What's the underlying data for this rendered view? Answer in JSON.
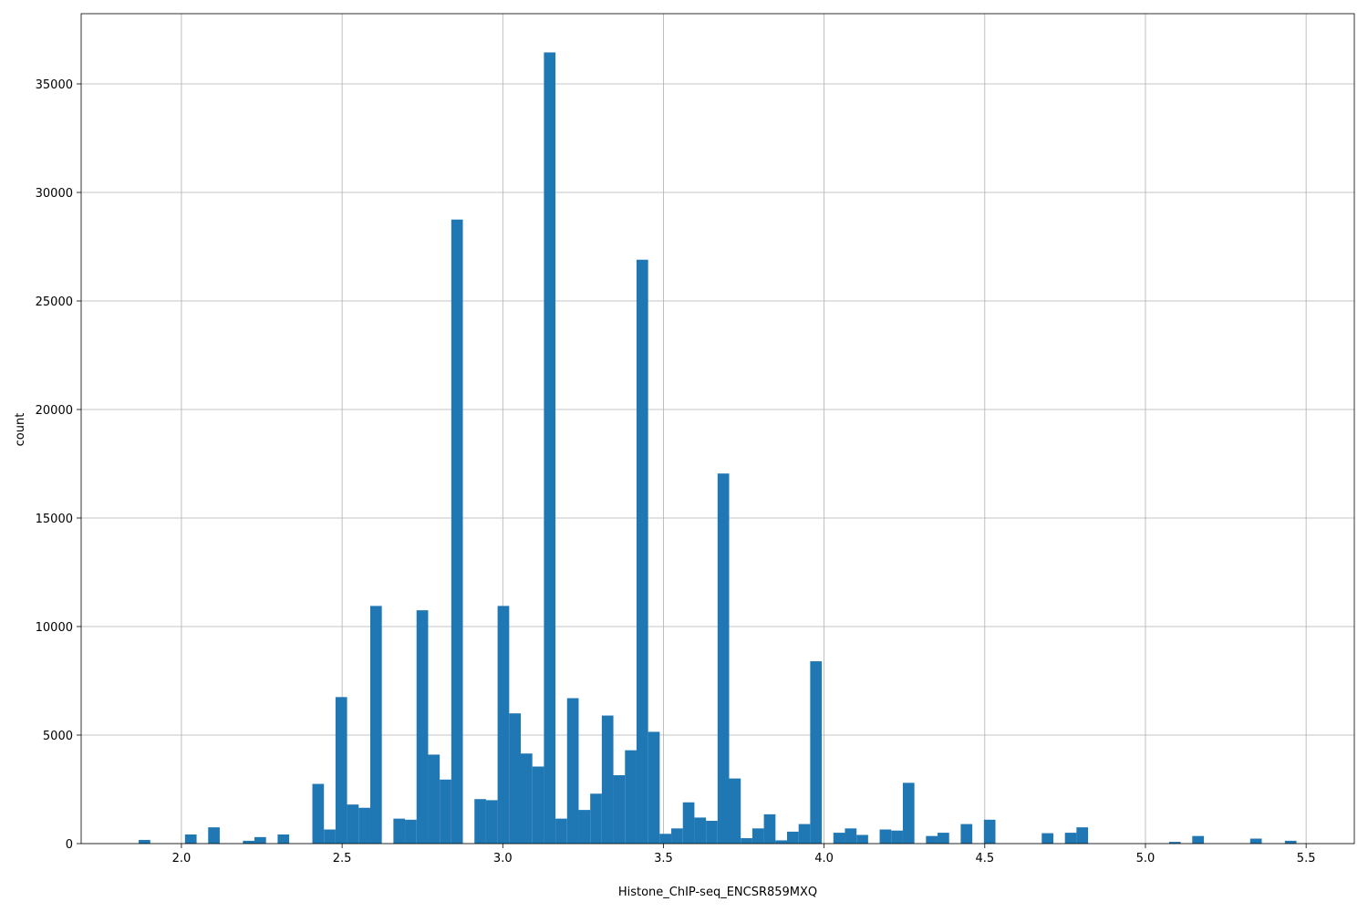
{
  "chart_data": {
    "type": "histogram",
    "x_label": "Histone_ChIP-seq_ENCSR859MXQ",
    "y_label": "count",
    "color": "#1f77b4",
    "grid": true,
    "bins": [
      1.867,
      1.903,
      1.9391,
      1.9751,
      2.0111,
      2.0472,
      2.0832,
      2.1192,
      2.1552,
      2.1913,
      2.2273,
      2.2633,
      2.2994,
      2.3354,
      2.3714,
      2.4075,
      2.4435,
      2.4795,
      2.5155,
      2.5516,
      2.5876,
      2.6236,
      2.6597,
      2.6957,
      2.7317,
      2.7678,
      2.8038,
      2.8398,
      2.8758,
      2.9119,
      2.9479,
      2.9839,
      3.02,
      3.056,
      3.092,
      3.1281,
      3.1641,
      3.2001,
      3.2361,
      3.2722,
      3.3082,
      3.3442,
      3.3803,
      3.4163,
      3.4523,
      3.4884,
      3.5244,
      3.5604,
      3.5964,
      3.6325,
      3.6685,
      3.7045,
      3.7406,
      3.7766,
      3.8126,
      3.8487,
      3.8847,
      3.9207,
      3.9567,
      3.9928,
      4.0288,
      4.0648,
      4.1009,
      4.1369,
      4.1729,
      4.209,
      4.245,
      4.281,
      4.317,
      4.3531,
      4.3891,
      4.4251,
      4.4612,
      4.4972,
      4.5332,
      4.5693,
      4.6053,
      4.6413,
      4.6773,
      4.7134,
      4.7494,
      4.7854,
      4.8215,
      4.8575,
      4.8935,
      4.9296,
      4.9656,
      5.0016,
      5.0376,
      5.0737,
      5.1097,
      5.1457,
      5.1818,
      5.2178,
      5.2538,
      5.2899,
      5.3259,
      5.3619,
      5.3979,
      5.434,
      5.47
    ],
    "counts": [
      170,
      0,
      0,
      0,
      420,
      0,
      750,
      0,
      0,
      130,
      300,
      0,
      420,
      0,
      0,
      2750,
      650,
      6750,
      1800,
      1650,
      10950,
      0,
      1150,
      1100,
      10750,
      4100,
      2950,
      28750,
      0,
      2050,
      2000,
      10950,
      6000,
      4150,
      3550,
      36450,
      1150,
      6700,
      1550,
      2300,
      5900,
      3150,
      4300,
      26900,
      5150,
      450,
      700,
      1900,
      1200,
      1050,
      17050,
      3000,
      250,
      700,
      1350,
      150,
      550,
      900,
      8400,
      0,
      500,
      700,
      400,
      0,
      650,
      600,
      2800,
      0,
      350,
      500,
      0,
      900,
      0,
      1100,
      0,
      0,
      0,
      0,
      480,
      0,
      500,
      750,
      0,
      0,
      0,
      0,
      0,
      0,
      0,
      80,
      0,
      350,
      0,
      0,
      0,
      0,
      230,
      0,
      0,
      130
    ],
    "xlim": [
      1.688,
      5.65
    ],
    "ylim": [
      0,
      38235
    ],
    "xticks": [
      {
        "value": 2,
        "label": "2.0"
      },
      2.5,
      {
        "value": 3,
        "label": "3.0"
      },
      3.5,
      {
        "value": 4,
        "label": "4.0"
      },
      4.5,
      {
        "value": 5,
        "label": "5.0"
      },
      5.5
    ],
    "yticks": [
      0,
      5000,
      10000,
      15000,
      20000,
      25000,
      30000,
      35000
    ]
  }
}
